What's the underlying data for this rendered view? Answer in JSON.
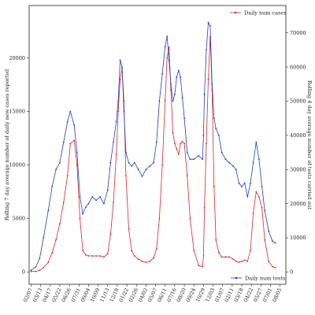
{
  "chart_data": {
    "type": "line",
    "title": "",
    "xlabel": "",
    "y_left_label": "Rolling 7 day average number of daily new cases reported",
    "y_right_label": "Rolling 4 day average number of tests carried out",
    "x_tick_labels": [
      "02/07",
      "03/13",
      "04/17",
      "05/22",
      "06/26",
      "07/31",
      "09/04",
      "10/09",
      "11/13",
      "12/18",
      "01/22",
      "02/26",
      "04/02",
      "05/07",
      "06/11",
      "07/16",
      "08/20",
      "09/24",
      "10/29",
      "12/03",
      "01/07",
      "02/11",
      "03/18",
      "04/22",
      "05/27",
      "07/01",
      "08/05"
    ],
    "y_left_ticks": [
      0,
      5000,
      10000,
      15000,
      20000
    ],
    "y_left_lim": [
      -1150,
      24900
    ],
    "y_right_ticks": [
      0,
      10000,
      20000,
      30000,
      40000,
      50000,
      60000,
      70000
    ],
    "y_right_lim": [
      -3600,
      78000
    ],
    "x_lim": [
      -0.2,
      26.6
    ],
    "legends": [
      {
        "name": "Daily num cases",
        "color": "#d62728",
        "position": "top-right"
      },
      {
        "name": "Daily num tests",
        "color": "#1f3fbf",
        "position": "bottom-right"
      }
    ],
    "series": [
      {
        "name": "Daily num cases",
        "axis": "left",
        "color": "#d62728",
        "x": [
          0.0,
          0.5,
          0.9,
          1.3,
          1.8,
          2.2,
          2.6,
          3.0,
          3.4,
          3.8,
          4.1,
          4.5,
          4.8,
          5.1,
          5.4,
          5.7,
          6.0,
          6.4,
          6.8,
          7.2,
          7.6,
          8.0,
          8.3,
          8.6,
          8.9,
          9.1,
          9.3,
          9.5,
          9.7,
          9.9,
          10.2,
          10.5,
          10.8,
          11.2,
          11.6,
          12.0,
          12.4,
          12.8,
          13.1,
          13.4,
          13.7,
          14.0,
          14.2,
          14.4,
          14.6,
          14.8,
          15.0,
          15.2,
          15.4,
          15.6,
          15.8,
          16.0,
          16.3,
          16.6,
          17.0,
          17.5,
          17.9,
          18.0,
          18.1,
          18.3,
          18.5,
          18.7,
          18.9,
          19.1,
          19.3,
          19.6,
          19.9,
          20.3,
          20.7,
          21.1,
          21.4,
          21.7,
          22.0,
          22.3,
          22.6,
          22.9,
          23.2,
          23.5,
          23.8,
          24.1,
          24.4,
          24.8,
          25.2,
          25.5
        ],
        "values": [
          50,
          60,
          150,
          400,
          900,
          1800,
          3000,
          4500,
          6500,
          9000,
          12000,
          12300,
          10000,
          5000,
          2000,
          1600,
          1500,
          1500,
          1500,
          1500,
          1400,
          1700,
          3500,
          6500,
          11000,
          15000,
          18000,
          19000,
          16000,
          9000,
          4000,
          2000,
          1500,
          1200,
          1000,
          900,
          1000,
          1300,
          2200,
          5000,
          10000,
          16000,
          20000,
          21000,
          17000,
          13000,
          12000,
          11500,
          11000,
          12000,
          12200,
          12000,
          9000,
          5000,
          2000,
          600,
          500,
          1500,
          6000,
          12000,
          18000,
          22000,
          17000,
          8000,
          3000,
          1800,
          1400,
          1400,
          1400,
          1200,
          1000,
          900,
          1000,
          1100,
          1000,
          2000,
          5500,
          7500,
          7000,
          6000,
          3000,
          1000,
          500,
          400
        ]
      },
      {
        "name": "Daily num tests",
        "axis": "right",
        "color": "#1f3fbf",
        "x": [
          0.0,
          0.5,
          0.9,
          1.3,
          1.8,
          2.2,
          2.6,
          3.0,
          3.4,
          3.8,
          4.1,
          4.5,
          4.8,
          5.1,
          5.4,
          5.7,
          6.0,
          6.4,
          6.8,
          7.2,
          7.6,
          8.0,
          8.3,
          8.6,
          8.9,
          9.1,
          9.3,
          9.5,
          9.7,
          9.9,
          10.2,
          10.5,
          10.8,
          11.2,
          11.6,
          12.0,
          12.4,
          12.8,
          13.1,
          13.4,
          13.7,
          14.0,
          14.2,
          14.4,
          14.6,
          14.8,
          15.0,
          15.2,
          15.4,
          15.6,
          15.8,
          16.0,
          16.3,
          16.6,
          17.0,
          17.5,
          17.9,
          18.0,
          18.1,
          18.3,
          18.5,
          18.7,
          18.9,
          19.1,
          19.3,
          19.6,
          19.9,
          20.3,
          20.7,
          21.1,
          21.4,
          21.7,
          22.0,
          22.3,
          22.6,
          22.9,
          23.2,
          23.5,
          23.8,
          24.1,
          24.4,
          24.8,
          25.2,
          25.5
        ],
        "values": [
          500,
          1500,
          4000,
          10000,
          18000,
          25000,
          30000,
          32000,
          38000,
          44000,
          47000,
          43000,
          35000,
          22000,
          17000,
          19000,
          20000,
          22000,
          21000,
          22000,
          20000,
          24000,
          32000,
          38000,
          44000,
          50000,
          62000,
          60000,
          47000,
          35000,
          32000,
          31000,
          32000,
          30000,
          28000,
          30000,
          31000,
          32000,
          38000,
          50000,
          58000,
          66000,
          69000,
          62000,
          55000,
          50000,
          52000,
          57000,
          59000,
          57000,
          51000,
          45000,
          35000,
          33000,
          33000,
          34000,
          33000,
          40000,
          52000,
          65000,
          73000,
          72000,
          55000,
          45000,
          42000,
          40000,
          35000,
          33000,
          32000,
          31000,
          30000,
          26000,
          25000,
          26000,
          22000,
          26000,
          32000,
          38000,
          33000,
          25000,
          18000,
          12000,
          9000,
          8500
        ]
      }
    ]
  }
}
